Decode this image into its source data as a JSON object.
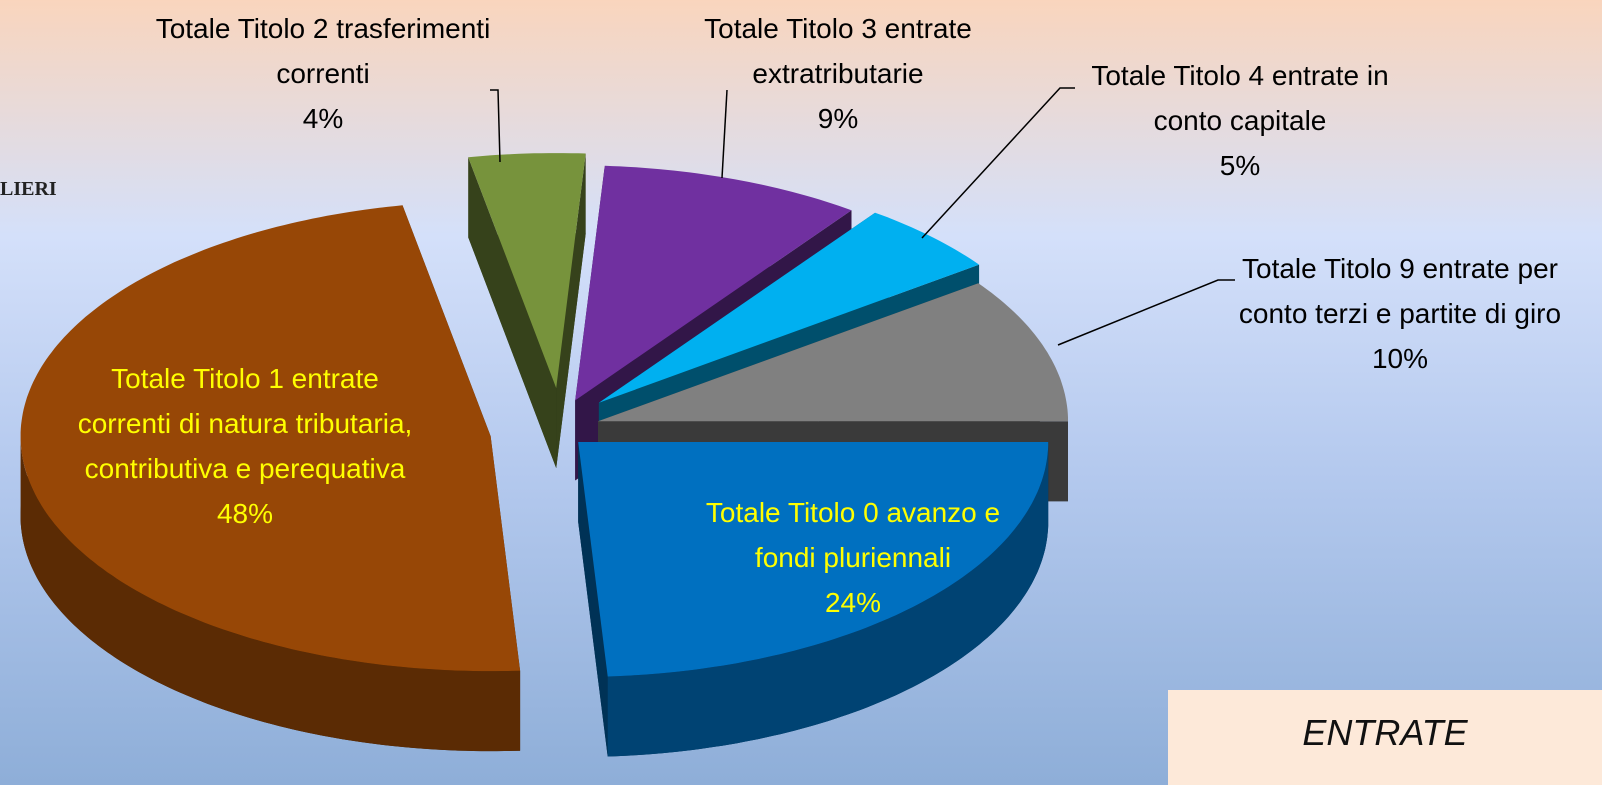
{
  "chart_data": {
    "type": "pie3d",
    "categories": [
      "Totale Titolo 0 avanzo e fondi pluriennali",
      "Totale Titolo 1 entrate correnti di natura tributaria, contributiva e perequativa",
      "Totale Titolo 2 trasferimenti correnti",
      "Totale Titolo 3 entrate extratributarie",
      "Totale Titolo 4 entrate in conto capitale",
      "Totale Titolo 9 entrate per conto terzi e partite di giro"
    ],
    "values": [
      24,
      48,
      4,
      9,
      5,
      10
    ],
    "value_labels": [
      "24%",
      "48%",
      "4%",
      "9%",
      "5%",
      "10%"
    ],
    "colors": [
      "#0070c0",
      "#974706",
      "#77933c",
      "#7030a0",
      "#00b0f0",
      "#808080"
    ]
  },
  "logo_text": "LIERI",
  "box_title": "ENTRATE"
}
